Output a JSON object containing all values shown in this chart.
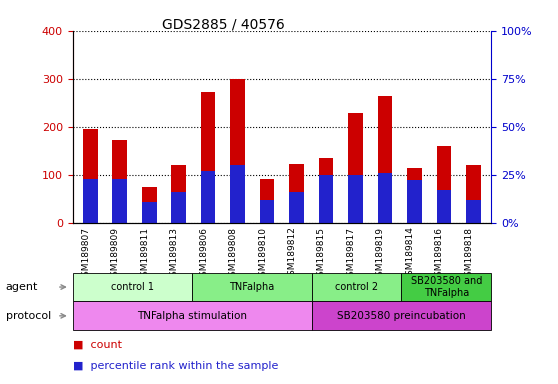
{
  "title": "GDS2885 / 40576",
  "samples": [
    "GSM189807",
    "GSM189809",
    "GSM189811",
    "GSM189813",
    "GSM189806",
    "GSM189808",
    "GSM189810",
    "GSM189812",
    "GSM189815",
    "GSM189817",
    "GSM189819",
    "GSM189814",
    "GSM189816",
    "GSM189818"
  ],
  "count_values": [
    195,
    172,
    75,
    120,
    272,
    300,
    92,
    122,
    135,
    228,
    265,
    115,
    160,
    120
  ],
  "percentile_values": [
    23,
    23,
    11,
    16,
    27,
    30,
    12,
    16,
    25,
    25,
    26,
    22,
    17,
    12
  ],
  "ylim_left": [
    0,
    400
  ],
  "ylim_right": [
    0,
    100
  ],
  "left_yticks": [
    0,
    100,
    200,
    300,
    400
  ],
  "right_yticks": [
    0,
    25,
    50,
    75,
    100
  ],
  "right_yticklabels": [
    "0%",
    "25%",
    "50%",
    "75%",
    "100%"
  ],
  "bar_color": "#cc0000",
  "percentile_color": "#2222cc",
  "bar_width": 0.5,
  "grid_linestyle": "dotted",
  "grid_color": "#000000",
  "agent_groups": [
    {
      "label": "control 1",
      "start": 0,
      "end": 4,
      "color": "#ccffcc"
    },
    {
      "label": "TNFalpha",
      "start": 4,
      "end": 8,
      "color": "#88ee88"
    },
    {
      "label": "control 2",
      "start": 8,
      "end": 11,
      "color": "#88ee88"
    },
    {
      "label": "SB203580 and\nTNFalpha",
      "start": 11,
      "end": 14,
      "color": "#44cc44"
    }
  ],
  "protocol_groups": [
    {
      "label": "TNFalpha stimulation",
      "start": 0,
      "end": 8,
      "color": "#ee88ee"
    },
    {
      "label": "SB203580 preincubation",
      "start": 8,
      "end": 14,
      "color": "#cc44cc"
    }
  ],
  "tick_label_color_left": "#cc0000",
  "tick_label_color_right": "#0000cc",
  "legend_count_color": "#cc0000",
  "legend_pct_color": "#2222cc",
  "figure_width": 5.58,
  "figure_height": 3.84,
  "figure_dpi": 100
}
